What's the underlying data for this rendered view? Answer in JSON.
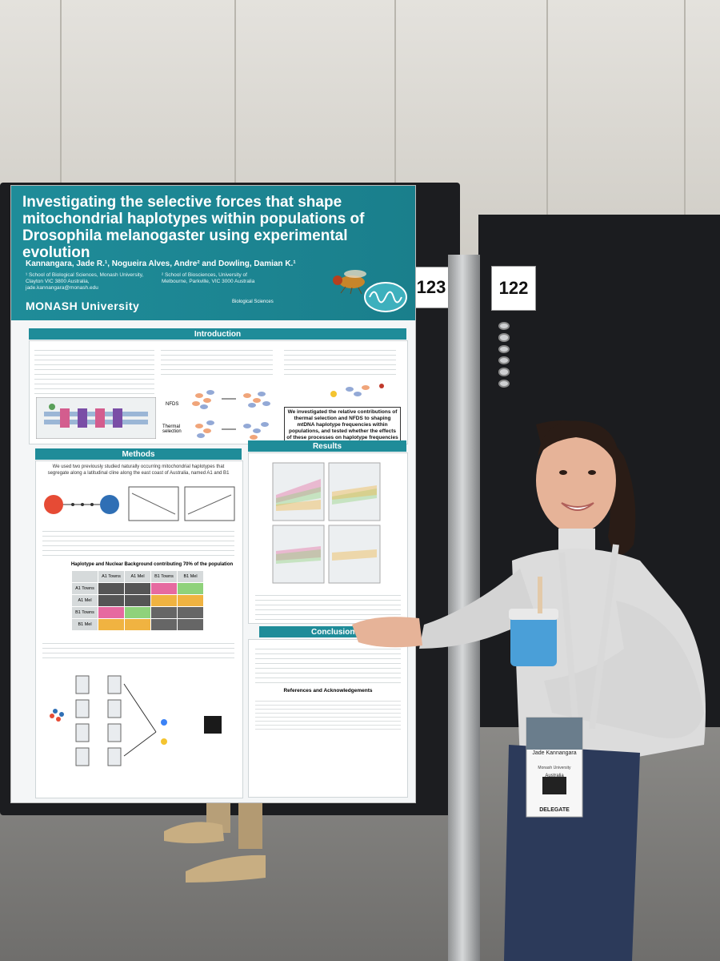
{
  "booth_numbers": {
    "left": "123",
    "right": "122"
  },
  "poster": {
    "title": "Investigating the selective forces that shape mitochondrial haplotypes within populations of Drosophila melanogaster using experimental evolution",
    "authors": "Kannangara, Jade R.¹, Nogueira Alves, Andre² and Dowling, Damian K.¹",
    "affiliation_1": "¹ School of Biological Sciences, Monash University, Clayton VIC 3800 Australia, jade.kannangara@monash.edu",
    "affiliation_2": "² School of Biosciences, University of Melbourne, Parkville, VIC 3000 Australia",
    "university": "MONASH University",
    "biosci_logo": "Biological Sciences",
    "sections": {
      "introduction": "Introduction",
      "methods": "Methods",
      "results": "Results",
      "conclusions": "Conclusions"
    },
    "intro_highlight": "We investigated the relative contributions of thermal selection and NFDS to shaping mtDNA haplotype frequencies within populations, and tested whether the effects of these processes on haplotype frequencies were moderated by nuclear background",
    "methods_lead": "We used two previously studied naturally occurring mitochondrial haplotypes that segregate along a latitudinal cline along the east coast of Australia, named A1 and B1",
    "table_title": "Haplotype and Nuclear Background contributing 70% of the population",
    "table_cols": [
      "",
      "A1 Towns",
      "A1 Mel",
      "B1 Towns",
      "B1 Mel"
    ],
    "table_rows": [
      "A1 Towns",
      "A1 Mel",
      "B1 Towns",
      "B1 Mel"
    ],
    "labels": {
      "nfds": "NFDS",
      "thermal": "Thermal selection"
    },
    "references_title": "References and Acknowledgements"
  },
  "badge": {
    "name": "Jade Kannangara",
    "org": "Monash University",
    "country": "Australia",
    "role": "DELEGATE"
  },
  "colors": {
    "poster_teal": "#1f8c99",
    "pink": "#e66aa0",
    "green": "#8fd27b",
    "orange": "#f0b341"
  }
}
